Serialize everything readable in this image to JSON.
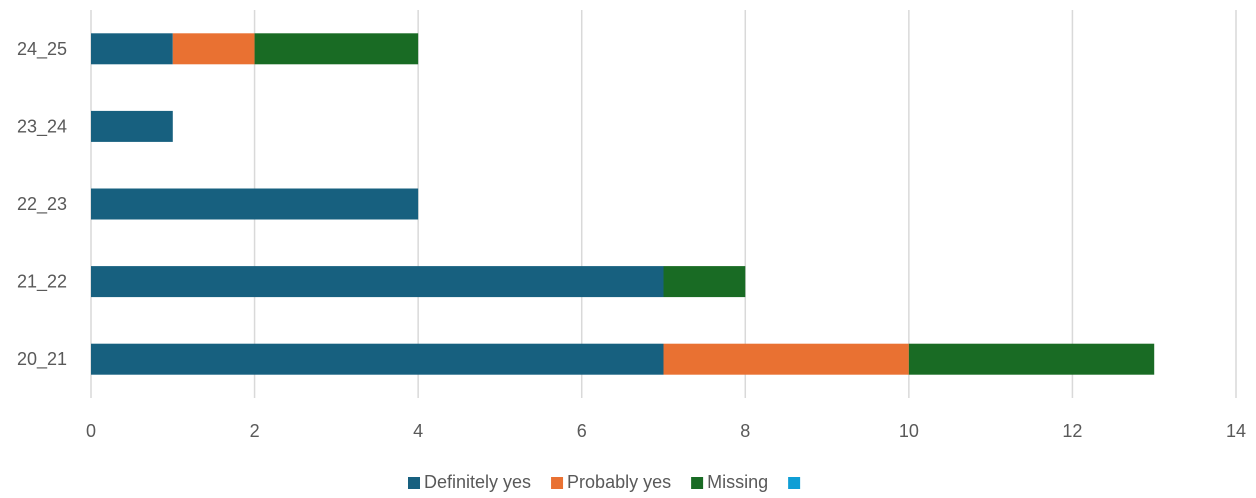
{
  "chart_data": {
    "type": "bar",
    "orientation": "horizontal",
    "stacked": true,
    "categories": [
      "24_25",
      "23_24",
      "22_23",
      "21_22",
      "20_21"
    ],
    "series": [
      {
        "name": "Definitely yes",
        "color": "#17607F",
        "values": [
          1,
          1,
          4,
          7,
          7
        ]
      },
      {
        "name": "Probably yes",
        "color": "#E97132",
        "values": [
          1,
          0,
          0,
          0,
          3
        ]
      },
      {
        "name": "Missing",
        "color": "#196B24",
        "values": [
          2,
          0,
          0,
          1,
          3
        ]
      },
      {
        "name": "",
        "color": "#0F9ED5",
        "values": [
          0,
          0,
          0,
          0,
          0
        ]
      }
    ],
    "xlim": [
      0,
      14
    ],
    "xticks": [
      0,
      2,
      4,
      6,
      8,
      10,
      12,
      14
    ],
    "grid": true,
    "legend": "bottom",
    "title": "",
    "xlabel": "",
    "ylabel": ""
  }
}
